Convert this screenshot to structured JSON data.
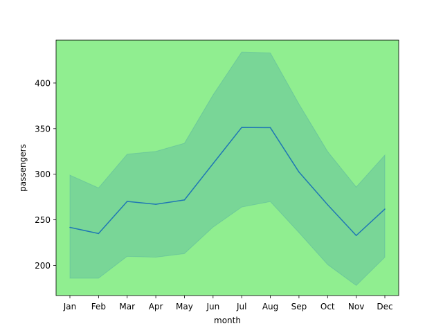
{
  "chart_data": {
    "type": "line",
    "title": "",
    "xlabel": "month",
    "ylabel": "passengers",
    "categories": [
      "Jan",
      "Feb",
      "Mar",
      "Apr",
      "May",
      "Jun",
      "Jul",
      "Aug",
      "Sep",
      "Oct",
      "Nov",
      "Dec"
    ],
    "series": [
      {
        "values": [
          241.75,
          235.0,
          270.17,
          267.08,
          271.83,
          311.67,
          351.33,
          351.08,
          302.42,
          266.58,
          232.83,
          261.83
        ],
        "band_lower": [
          186,
          186,
          210,
          209,
          213,
          242,
          264,
          270,
          236,
          201,
          178,
          209
        ],
        "band_upper": [
          299,
          285,
          322,
          325,
          334,
          387,
          434,
          433,
          377,
          325,
          286,
          321
        ]
      }
    ],
    "ylim": [
      167,
      447
    ],
    "yticks": [
      200,
      250,
      300,
      350,
      400
    ],
    "grid": false,
    "colors": {
      "plot_background": "#90ee90",
      "line": "#1f77b4",
      "band": "#1f77b4",
      "axes": "#000000",
      "figure_background": "#ffffff"
    }
  }
}
